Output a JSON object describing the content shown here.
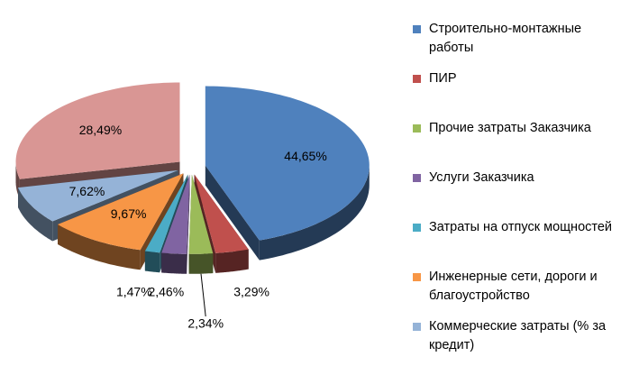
{
  "chart_data": {
    "type": "pie3d",
    "categories": [
      "Строительно-монтажные работы",
      "ПИР",
      "Прочие затраты Заказчика",
      "Услуги Заказчика",
      "Затраты на отпуск мощностей",
      "Инженерные сети, дороги и благоустройство",
      "Коммерческие затраты (% за кредит)",
      null
    ],
    "values": [
      44.65,
      3.29,
      2.34,
      2.46,
      1.47,
      9.67,
      7.62,
      28.49
    ],
    "value_labels": [
      "44,65%",
      "3,29%",
      "2,34%",
      "2,46%",
      "1,47%",
      "9,67%",
      "7,62%",
      "28,49%"
    ],
    "colors": [
      "#4f81bd",
      "#c0504d",
      "#9bbb59",
      "#8064a2",
      "#4bacc6",
      "#f79646",
      "#95b3d7",
      "#d99694"
    ],
    "legend": "right"
  }
}
